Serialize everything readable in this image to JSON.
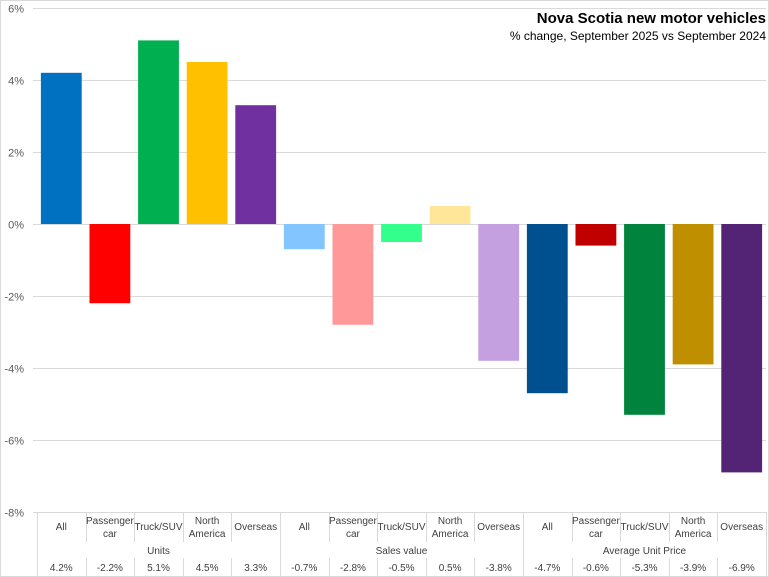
{
  "chart_data": {
    "type": "bar",
    "title": "Nova Scotia new motor vehicles",
    "subtitle": "% change, September  2025 vs September  2024",
    "xlabel": "",
    "ylabel": "",
    "ylim": [
      -8,
      6
    ],
    "yticks": [
      6,
      4,
      2,
      0,
      -2,
      -4,
      -6,
      -8
    ],
    "ytick_labels": [
      "6%",
      "4%",
      "2%",
      "0%",
      "-2%",
      "-4%",
      "-6%",
      "-8%"
    ],
    "grid": true,
    "legend": "none",
    "groups": [
      {
        "name": "Units",
        "categories": [
          {
            "label": [
              "All"
            ],
            "value": 4.2,
            "value_label": "4.2%",
            "color": "#0070C0"
          },
          {
            "label": [
              "Passenger",
              "car"
            ],
            "value": -2.2,
            "value_label": "-2.2%",
            "color": "#FF0000"
          },
          {
            "label": [
              "Truck/SUV"
            ],
            "value": 5.1,
            "value_label": "5.1%",
            "color": "#00B050"
          },
          {
            "label": [
              "North",
              "America"
            ],
            "value": 4.5,
            "value_label": "4.5%",
            "color": "#FFC000"
          },
          {
            "label": [
              "Overseas"
            ],
            "value": 3.3,
            "value_label": "3.3%",
            "color": "#7030A0"
          }
        ]
      },
      {
        "name": "Sales value",
        "categories": [
          {
            "label": [
              "All"
            ],
            "value": -0.7,
            "value_label": "-0.7%",
            "color": "#83C5FF"
          },
          {
            "label": [
              "Passenger",
              "car"
            ],
            "value": -2.8,
            "value_label": "-2.8%",
            "color": "#FF9999"
          },
          {
            "label": [
              "Truck/SUV"
            ],
            "value": -0.5,
            "value_label": "-0.5%",
            "color": "#33FF8C"
          },
          {
            "label": [
              "North",
              "America"
            ],
            "value": 0.5,
            "value_label": "0.5%",
            "color": "#FFE699"
          },
          {
            "label": [
              "Overseas"
            ],
            "value": -3.8,
            "value_label": "-3.8%",
            "color": "#C5A0E0"
          }
        ]
      },
      {
        "name": "Average Unit Price",
        "categories": [
          {
            "label": [
              "All"
            ],
            "value": -4.7,
            "value_label": "-4.7%",
            "color": "#00508F"
          },
          {
            "label": [
              "Passenger",
              "car"
            ],
            "value": -0.6,
            "value_label": "-0.6%",
            "color": "#C00000"
          },
          {
            "label": [
              "Truck/SUV"
            ],
            "value": -5.3,
            "value_label": "-5.3%",
            "color": "#00843D"
          },
          {
            "label": [
              "North",
              "America"
            ],
            "value": -3.9,
            "value_label": "-3.9%",
            "color": "#BF8F00"
          },
          {
            "label": [
              "Overseas"
            ],
            "value": -6.9,
            "value_label": "-6.9%",
            "color": "#532476"
          }
        ]
      }
    ]
  }
}
